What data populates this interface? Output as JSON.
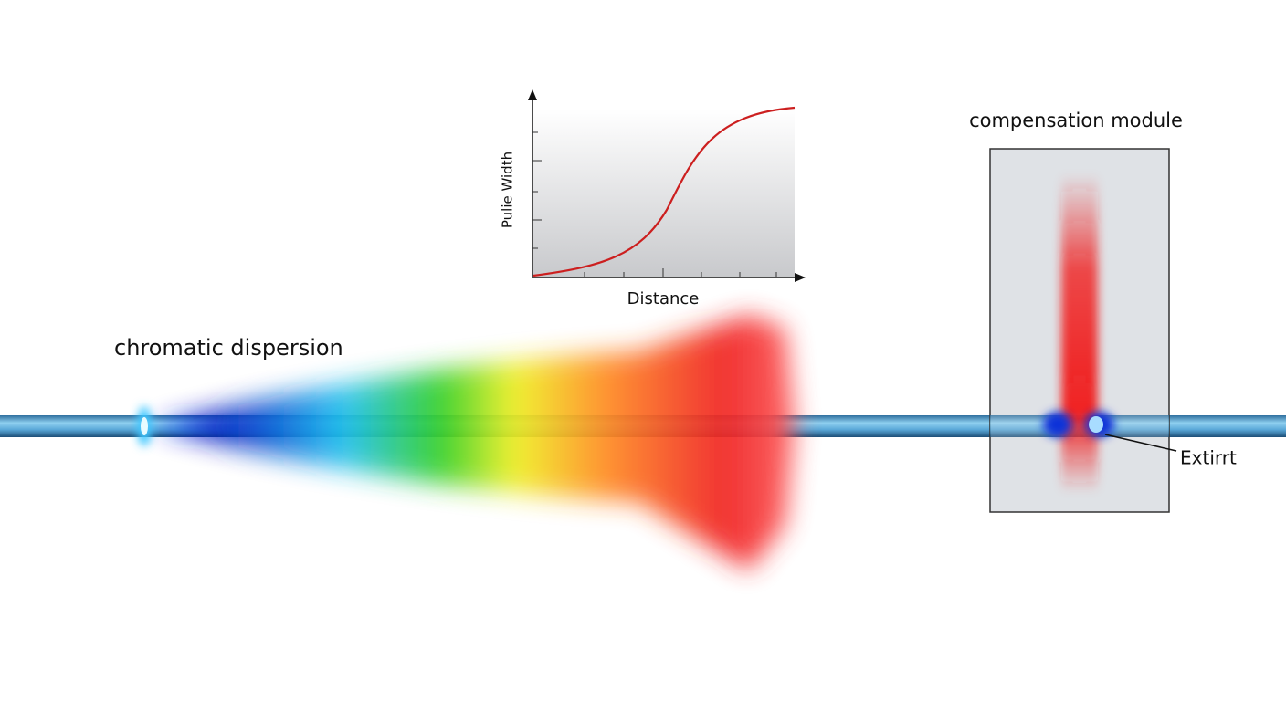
{
  "labels": {
    "dispersion": "chromatic dispersion",
    "module": "compensation module",
    "exit": "Extirrt"
  },
  "inset": {
    "y_label": "Pulie Width",
    "x_label": "Distance"
  }
}
